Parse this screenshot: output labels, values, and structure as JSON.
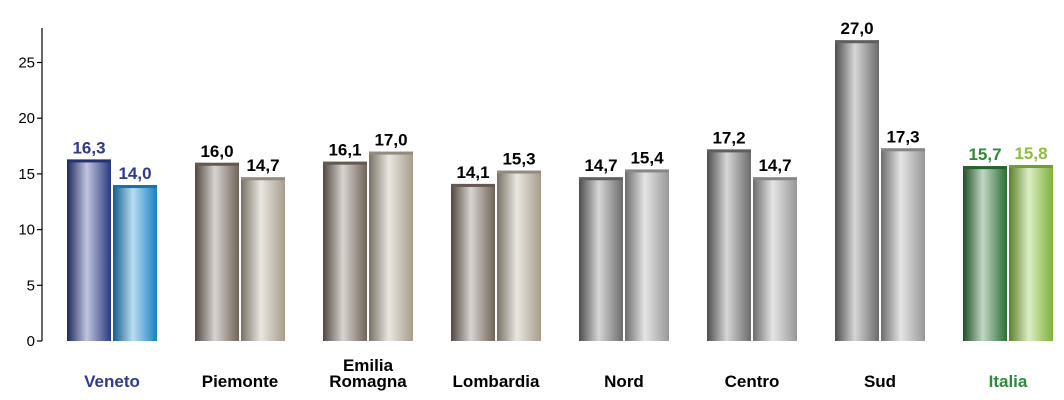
{
  "chart_data": {
    "type": "bar",
    "ylim": [
      0,
      28
    ],
    "yticks": [
      0,
      5,
      10,
      15,
      20,
      25
    ],
    "ytick_labels": [
      "0",
      "5",
      "10",
      "15",
      "20",
      "25"
    ],
    "grid": false,
    "legend": "none",
    "categories": [
      {
        "label_lines": [
          "Veneto"
        ],
        "values": [
          16.3,
          14.0
        ],
        "labels": [
          "16,3",
          "14,0"
        ],
        "label_color": "#2e3a8c",
        "value_colors": [
          "#2e3a8c",
          "#2e3a8c"
        ],
        "bar_colors": [
          "#2e3f8f",
          "#1a8fd6"
        ]
      },
      {
        "label_lines": [
          "Piemonte"
        ],
        "values": [
          16.0,
          14.7
        ],
        "labels": [
          "16,0",
          "14,7"
        ],
        "label_color": "#000000",
        "value_colors": [
          "#000000",
          "#000000"
        ],
        "bar_colors": [
          "#7d6e63",
          "#b8ae9c"
        ]
      },
      {
        "label_lines": [
          "Emilia",
          "Romagna"
        ],
        "values": [
          16.1,
          17.0
        ],
        "labels": [
          "16,1",
          "17,0"
        ],
        "label_color": "#000000",
        "value_colors": [
          "#000000",
          "#000000"
        ],
        "bar_colors": [
          "#7d6e63",
          "#b8ae9c"
        ]
      },
      {
        "label_lines": [
          "Lombardia"
        ],
        "values": [
          14.1,
          15.3
        ],
        "labels": [
          "14,1",
          "15,3"
        ],
        "label_color": "#000000",
        "value_colors": [
          "#000000",
          "#000000"
        ],
        "bar_colors": [
          "#7d6e63",
          "#b8ae9c"
        ]
      },
      {
        "label_lines": [
          "Nord"
        ],
        "values": [
          14.7,
          15.4
        ],
        "labels": [
          "14,7",
          "15,4"
        ],
        "label_color": "#000000",
        "value_colors": [
          "#000000",
          "#000000"
        ],
        "bar_colors": [
          "#777777",
          "#a8a8a8"
        ]
      },
      {
        "label_lines": [
          "Centro"
        ],
        "values": [
          17.2,
          14.7
        ],
        "labels": [
          "17,2",
          "14,7"
        ],
        "label_color": "#000000",
        "value_colors": [
          "#000000",
          "#000000"
        ],
        "bar_colors": [
          "#777777",
          "#a8a8a8"
        ]
      },
      {
        "label_lines": [
          "Sud"
        ],
        "values": [
          27.0,
          17.3
        ],
        "labels": [
          "27,0",
          "17,3"
        ],
        "label_color": "#000000",
        "value_colors": [
          "#000000",
          "#000000"
        ],
        "bar_colors": [
          "#777777",
          "#a8a8a8"
        ]
      },
      {
        "label_lines": [
          "Italia"
        ],
        "values": [
          15.7,
          15.8
        ],
        "labels": [
          "15,7",
          "15,8"
        ],
        "label_color": "#2f8a3a",
        "value_colors": [
          "#2f8a3a",
          "#8cbf3f"
        ],
        "bar_colors": [
          "#2f7a3a",
          "#8cc63f"
        ]
      }
    ]
  }
}
